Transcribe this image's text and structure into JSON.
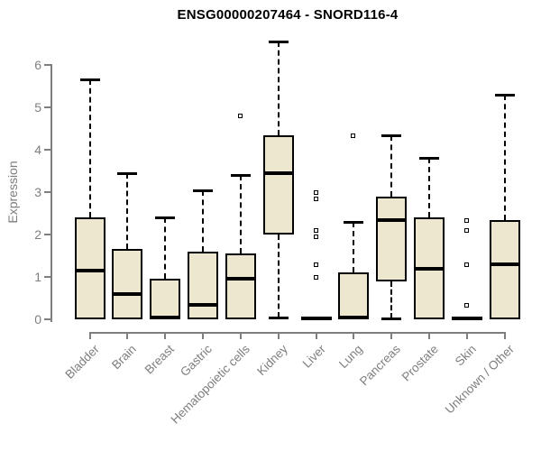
{
  "title": "ENSG00000207464 - SNORD116-4",
  "colors": {
    "box_fill": "#EDE7D0",
    "box_border": "#000000",
    "median": "#000000",
    "whisker": "#000000",
    "axis": "#7E7E7E",
    "tick_label": "#7E7E7E",
    "title_text": "#000000",
    "background": "#FFFFFF"
  },
  "chart_data": {
    "type": "boxplot",
    "title": "ENSG00000207464 - SNORD116-4",
    "xlabel": "",
    "ylabel": "Expression",
    "ylim": [
      0,
      6.6
    ],
    "yticks": [
      0,
      1,
      2,
      3,
      4,
      5,
      6
    ],
    "grid": false,
    "legend": null,
    "categories": [
      "Bladder",
      "Brain",
      "Breast",
      "Gastric",
      "Hematopoietic cells",
      "Kidney",
      "Liver",
      "Lung",
      "Pancreas",
      "Prostate",
      "Skin",
      "Unknown / Other"
    ],
    "series": [
      {
        "name": "Bladder",
        "low": 0,
        "q1": 0,
        "median": 1.15,
        "q3": 2.4,
        "high": 5.65,
        "outliers": []
      },
      {
        "name": "Brain",
        "low": 0,
        "q1": 0,
        "median": 0.6,
        "q3": 1.65,
        "high": 3.45,
        "outliers": []
      },
      {
        "name": "Breast",
        "low": 0,
        "q1": 0,
        "median": 0.05,
        "q3": 0.95,
        "high": 2.4,
        "outliers": []
      },
      {
        "name": "Gastric",
        "low": 0,
        "q1": 0,
        "median": 0.35,
        "q3": 1.6,
        "high": 3.05,
        "outliers": []
      },
      {
        "name": "Hematopoietic cells",
        "low": 0,
        "q1": 0,
        "median": 0.95,
        "q3": 1.55,
        "high": 3.4,
        "outliers": [
          4.8
        ]
      },
      {
        "name": "Kidney",
        "low": 0.05,
        "q1": 2.0,
        "median": 3.45,
        "q3": 4.35,
        "high": 6.55,
        "outliers": []
      },
      {
        "name": "Liver",
        "low": 0,
        "q1": 0,
        "median": 0.03,
        "q3": 0.06,
        "high": 0.06,
        "outliers": [
          1.0,
          1.3,
          1.95,
          2.1,
          2.85,
          3.0
        ]
      },
      {
        "name": "Lung",
        "low": 0,
        "q1": 0,
        "median": 0.05,
        "q3": 1.1,
        "high": 2.3,
        "outliers": [
          4.35
        ]
      },
      {
        "name": "Pancreas",
        "low": 0.03,
        "q1": 0.9,
        "median": 2.35,
        "q3": 2.9,
        "high": 4.35,
        "outliers": []
      },
      {
        "name": "Prostate",
        "low": 0,
        "q1": 0,
        "median": 1.2,
        "q3": 2.4,
        "high": 3.8,
        "outliers": []
      },
      {
        "name": "Skin",
        "low": 0,
        "q1": 0,
        "median": 0.03,
        "q3": 0.06,
        "high": 0.06,
        "outliers": [
          0.35,
          1.3,
          2.1,
          2.35
        ]
      },
      {
        "name": "Unknown / Other",
        "low": 0,
        "q1": 0,
        "median": 1.3,
        "q3": 2.35,
        "high": 5.3,
        "outliers": []
      }
    ]
  }
}
